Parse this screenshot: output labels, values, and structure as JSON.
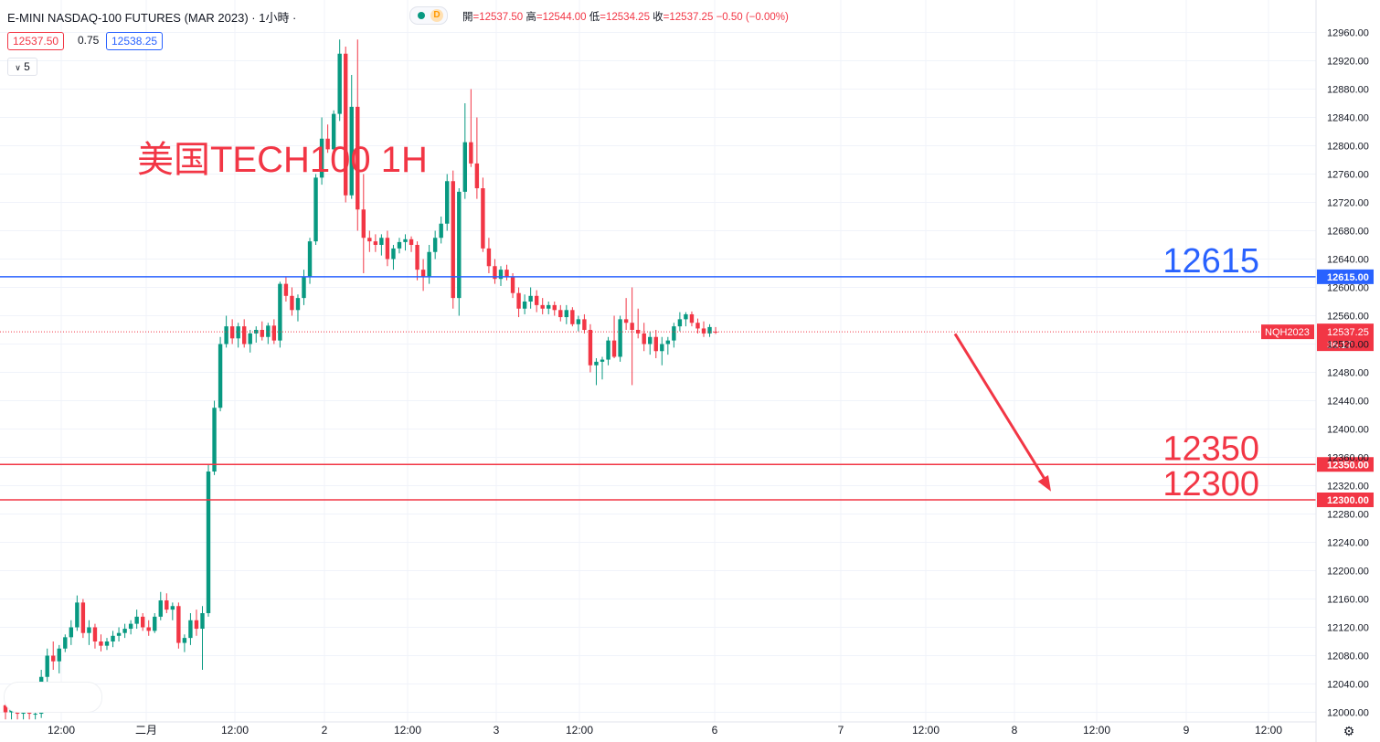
{
  "header": {
    "symbol_title": "E-MINI NASDAQ-100 FUTURES (MAR 2023) · 1小時 ·",
    "status_badge": "D",
    "ohlc": {
      "open_label": "開",
      "open": "=12537.50",
      "high_label": "高",
      "high": "=12544.00",
      "low_label": "低",
      "low": "=12534.25",
      "close_label": "收",
      "close": "=12537.25",
      "change": "−0.50 (−0.00%)"
    },
    "sell_price": "12537.50",
    "spread": "0.75",
    "buy_price": "12538.25",
    "indicator_toggle": "5"
  },
  "colors": {
    "up": "#089981",
    "down": "#f23645",
    "resistance_line": "#2962ff",
    "support_line": "#f23645",
    "grid": "#f0f3fa",
    "axis_text": "#131722",
    "annotation": "#f23645"
  },
  "chart_data": {
    "type": "candlestick",
    "title": "美国TECH100 1H",
    "symbol": "NQH2023",
    "ylim": [
      11990,
      12980
    ],
    "y_ticks": [
      12000,
      12040,
      12080,
      12120,
      12160,
      12200,
      12240,
      12280,
      12320,
      12360,
      12400,
      12440,
      12480,
      12520,
      12560,
      12600,
      12640,
      12680,
      12720,
      12760,
      12800,
      12840,
      12880,
      12920,
      12960
    ],
    "x_tick_labels": [
      "12:00",
      "二月",
      "12:00",
      "2",
      "12:00",
      "3",
      "12:00",
      "6",
      "7",
      "12:00",
      "8",
      "12:00",
      "9",
      "12:00"
    ],
    "last_price": {
      "label": "NQH2023",
      "value": "12537.25",
      "countdown": "36:17"
    },
    "levels": [
      {
        "name": "resistance",
        "value": 12615,
        "text": "12615",
        "axis_label": "12615.00",
        "color": "#2962ff"
      },
      {
        "name": "support-1",
        "value": 12350,
        "text": "12350",
        "axis_label": "12350.00",
        "color": "#f23645"
      },
      {
        "name": "support-2",
        "value": 12300,
        "text": "12300",
        "axis_label": "12300.00",
        "color": "#f23645"
      }
    ],
    "arrow": {
      "from_value": 12537,
      "to_value": 12312,
      "direction": "down"
    },
    "candles": [
      [
        12010,
        12030,
        11990,
        12000
      ],
      [
        12000,
        12015,
        11990,
        12006
      ],
      [
        12006,
        12012,
        11990,
        11998
      ],
      [
        11998,
        12008,
        11990,
        12002
      ],
      [
        12002,
        12006,
        11990,
        11998
      ],
      [
        11998,
        12004,
        11990,
        11998
      ],
      [
        11998,
        12060,
        11992,
        12050
      ],
      [
        12050,
        12090,
        12040,
        12080
      ],
      [
        12080,
        12100,
        12060,
        12072
      ],
      [
        12072,
        12095,
        12055,
        12090
      ],
      [
        12090,
        12110,
        12085,
        12106
      ],
      [
        12106,
        12130,
        12095,
        12120
      ],
      [
        12120,
        12165,
        12115,
        12155
      ],
      [
        12155,
        12160,
        12105,
        12112
      ],
      [
        12112,
        12130,
        12095,
        12120
      ],
      [
        12120,
        12125,
        12090,
        12100
      ],
      [
        12100,
        12110,
        12086,
        12094
      ],
      [
        12094,
        12105,
        12088,
        12100
      ],
      [
        12100,
        12115,
        12092,
        12108
      ],
      [
        12108,
        12120,
        12100,
        12112
      ],
      [
        12112,
        12125,
        12105,
        12118
      ],
      [
        12118,
        12130,
        12110,
        12125
      ],
      [
        12125,
        12145,
        12118,
        12135
      ],
      [
        12135,
        12140,
        12115,
        12120
      ],
      [
        12120,
        12130,
        12108,
        12115
      ],
      [
        12115,
        12140,
        12112,
        12135
      ],
      [
        12135,
        12170,
        12130,
        12158
      ],
      [
        12158,
        12168,
        12140,
        12145
      ],
      [
        12145,
        12155,
        12130,
        12150
      ],
      [
        12150,
        12155,
        12090,
        12098
      ],
      [
        12098,
        12110,
        12085,
        12105
      ],
      [
        12105,
        12140,
        12095,
        12130
      ],
      [
        12130,
        12145,
        12108,
        12118
      ],
      [
        12118,
        12150,
        12060,
        12140
      ],
      [
        12140,
        12350,
        12135,
        12340
      ],
      [
        12340,
        12440,
        12335,
        12430
      ],
      [
        12430,
        12530,
        12425,
        12520
      ],
      [
        12520,
        12560,
        12515,
        12545
      ],
      [
        12545,
        12555,
        12520,
        12528
      ],
      [
        12528,
        12550,
        12515,
        12545
      ],
      [
        12545,
        12555,
        12515,
        12520
      ],
      [
        12520,
        12540,
        12508,
        12535
      ],
      [
        12535,
        12545,
        12522,
        12540
      ],
      [
        12540,
        12552,
        12525,
        12530
      ],
      [
        12530,
        12550,
        12520,
        12546
      ],
      [
        12546,
        12555,
        12520,
        12525
      ],
      [
        12525,
        12608,
        12515,
        12605
      ],
      [
        12605,
        12615,
        12580,
        12588
      ],
      [
        12588,
        12600,
        12560,
        12568
      ],
      [
        12568,
        12590,
        12552,
        12585
      ],
      [
        12585,
        12625,
        12575,
        12615
      ],
      [
        12615,
        12670,
        12605,
        12665
      ],
      [
        12665,
        12760,
        12660,
        12755
      ],
      [
        12755,
        12840,
        12745,
        12810
      ],
      [
        12810,
        12830,
        12790,
        12795
      ],
      [
        12795,
        12850,
        12785,
        12845
      ],
      [
        12845,
        12950,
        12835,
        12930
      ],
      [
        12930,
        12940,
        12720,
        12730
      ],
      [
        12730,
        12900,
        12725,
        12855
      ],
      [
        12855,
        12950,
        12680,
        12710
      ],
      [
        12710,
        12760,
        12620,
        12670
      ],
      [
        12670,
        12680,
        12650,
        12665
      ],
      [
        12665,
        12675,
        12650,
        12660
      ],
      [
        12660,
        12675,
        12645,
        12670
      ],
      [
        12670,
        12680,
        12630,
        12640
      ],
      [
        12640,
        12660,
        12625,
        12655
      ],
      [
        12655,
        12670,
        12648,
        12664
      ],
      [
        12664,
        12675,
        12652,
        12668
      ],
      [
        12668,
        12672,
        12650,
        12660
      ],
      [
        12660,
        12665,
        12610,
        12625
      ],
      [
        12625,
        12640,
        12595,
        12615
      ],
      [
        12615,
        12660,
        12605,
        12650
      ],
      [
        12650,
        12680,
        12640,
        12670
      ],
      [
        12670,
        12700,
        12662,
        12690
      ],
      [
        12690,
        12760,
        12680,
        12750
      ],
      [
        12750,
        12765,
        12570,
        12585
      ],
      [
        12585,
        12740,
        12560,
        12735
      ],
      [
        12735,
        12860,
        12725,
        12805
      ],
      [
        12805,
        12880,
        12770,
        12775
      ],
      [
        12775,
        12840,
        12725,
        12740
      ],
      [
        12740,
        12755,
        12650,
        12655
      ],
      [
        12655,
        12670,
        12620,
        12630
      ],
      [
        12630,
        12640,
        12605,
        12612
      ],
      [
        12612,
        12630,
        12602,
        12625
      ],
      [
        12625,
        12632,
        12610,
        12615
      ],
      [
        12615,
        12620,
        12585,
        12592
      ],
      [
        12592,
        12600,
        12558,
        12570
      ],
      [
        12570,
        12590,
        12562,
        12580
      ],
      [
        12580,
        12600,
        12570,
        12588
      ],
      [
        12588,
        12596,
        12565,
        12575
      ],
      [
        12575,
        12585,
        12562,
        12570
      ],
      [
        12570,
        12580,
        12562,
        12575
      ],
      [
        12575,
        12580,
        12560,
        12568
      ],
      [
        12568,
        12575,
        12552,
        12558
      ],
      [
        12558,
        12575,
        12548,
        12568
      ],
      [
        12568,
        12572,
        12545,
        12548
      ],
      [
        12548,
        12560,
        12538,
        12555
      ],
      [
        12555,
        12562,
        12535,
        12540
      ],
      [
        12540,
        12548,
        12480,
        12490
      ],
      [
        12490,
        12500,
        12462,
        12495
      ],
      [
        12495,
        12502,
        12470,
        12498
      ],
      [
        12498,
        12530,
        12490,
        12525
      ],
      [
        12525,
        12560,
        12500,
        12502
      ],
      [
        12502,
        12560,
        12495,
        12555
      ],
      [
        12555,
        12585,
        12540,
        12550
      ],
      [
        12550,
        12600,
        12462,
        12540
      ],
      [
        12540,
        12570,
        12528,
        12535
      ],
      [
        12535,
        12550,
        12510,
        12520
      ],
      [
        12520,
        12538,
        12505,
        12530
      ],
      [
        12530,
        12540,
        12500,
        12510
      ],
      [
        12510,
        12530,
        12490,
        12520
      ],
      [
        12520,
        12530,
        12505,
        12525
      ],
      [
        12525,
        12550,
        12515,
        12545
      ],
      [
        12545,
        12565,
        12538,
        12555
      ],
      [
        12555,
        12565,
        12545,
        12562
      ],
      [
        12562,
        12566,
        12545,
        12550
      ],
      [
        12550,
        12556,
        12535,
        12542
      ],
      [
        12542,
        12552,
        12530,
        12535
      ],
      [
        12535,
        12548,
        12530,
        12544
      ],
      [
        12537.5,
        12544,
        12534.25,
        12537.25
      ]
    ]
  }
}
